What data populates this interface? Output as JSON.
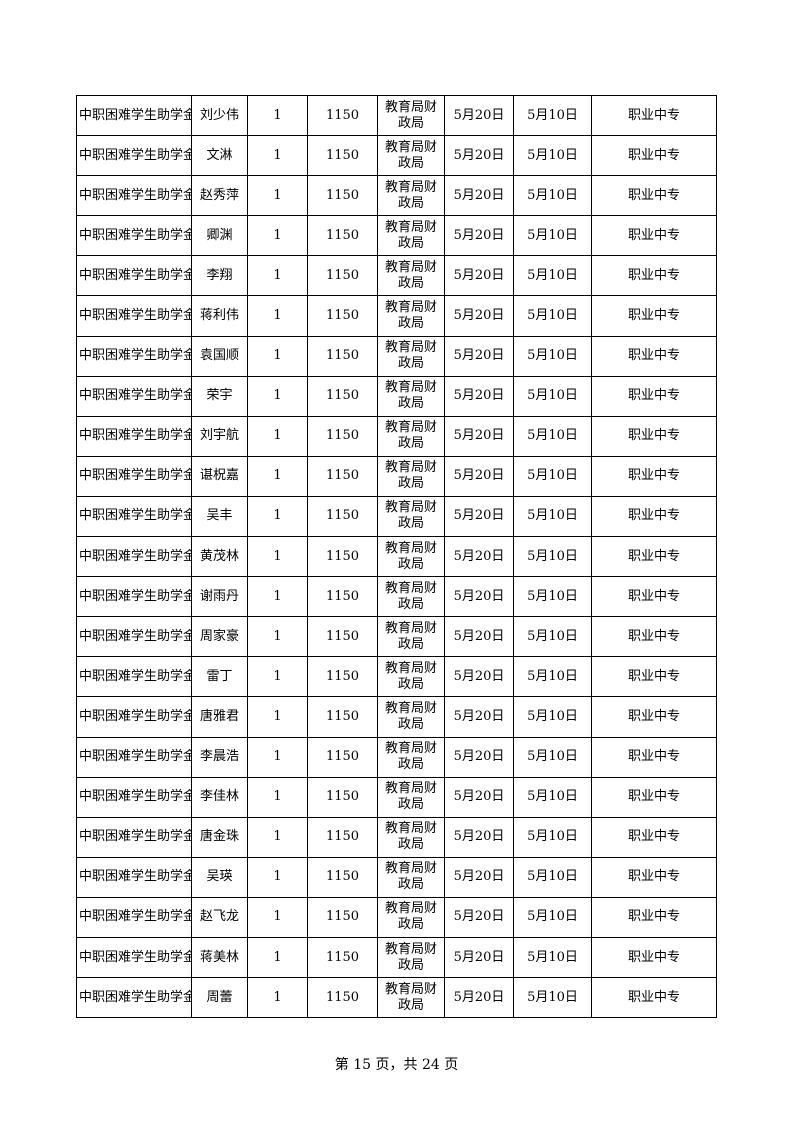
{
  "table": {
    "rows": [
      [
        "中职困难学生助学金",
        "刘少伟",
        "1",
        "1150",
        "教育局财政局",
        "5月20日",
        "5月10日",
        "职业中专"
      ],
      [
        "中职困难学生助学金",
        "文淋",
        "1",
        "1150",
        "教育局财政局",
        "5月20日",
        "5月10日",
        "职业中专"
      ],
      [
        "中职困难学生助学金",
        "赵秀萍",
        "1",
        "1150",
        "教育局财政局",
        "5月20日",
        "5月10日",
        "职业中专"
      ],
      [
        "中职困难学生助学金",
        "卿渊",
        "1",
        "1150",
        "教育局财政局",
        "5月20日",
        "5月10日",
        "职业中专"
      ],
      [
        "中职困难学生助学金",
        "李翔",
        "1",
        "1150",
        "教育局财政局",
        "5月20日",
        "5月10日",
        "职业中专"
      ],
      [
        "中职困难学生助学金",
        "蒋利伟",
        "1",
        "1150",
        "教育局财政局",
        "5月20日",
        "5月10日",
        "职业中专"
      ],
      [
        "中职困难学生助学金",
        "袁国顺",
        "1",
        "1150",
        "教育局财政局",
        "5月20日",
        "5月10日",
        "职业中专"
      ],
      [
        "中职困难学生助学金",
        "荣宇",
        "1",
        "1150",
        "教育局财政局",
        "5月20日",
        "5月10日",
        "职业中专"
      ],
      [
        "中职困难学生助学金",
        "刘宇航",
        "1",
        "1150",
        "教育局财政局",
        "5月20日",
        "5月10日",
        "职业中专"
      ],
      [
        "中职困难学生助学金",
        "谌柷嘉",
        "1",
        "1150",
        "教育局财政局",
        "5月20日",
        "5月10日",
        "职业中专"
      ],
      [
        "中职困难学生助学金",
        "吴丰",
        "1",
        "1150",
        "教育局财政局",
        "5月20日",
        "5月10日",
        "职业中专"
      ],
      [
        "中职困难学生助学金",
        "黄茂林",
        "1",
        "1150",
        "教育局财政局",
        "5月20日",
        "5月10日",
        "职业中专"
      ],
      [
        "中职困难学生助学金",
        "谢雨丹",
        "1",
        "1150",
        "教育局财政局",
        "5月20日",
        "5月10日",
        "职业中专"
      ],
      [
        "中职困难学生助学金",
        "周家豪",
        "1",
        "1150",
        "教育局财政局",
        "5月20日",
        "5月10日",
        "职业中专"
      ],
      [
        "中职困难学生助学金",
        "雷丁",
        "1",
        "1150",
        "教育局财政局",
        "5月20日",
        "5月10日",
        "职业中专"
      ],
      [
        "中职困难学生助学金",
        "唐雅君",
        "1",
        "1150",
        "教育局财政局",
        "5月20日",
        "5月10日",
        "职业中专"
      ],
      [
        "中职困难学生助学金",
        "李晨浩",
        "1",
        "1150",
        "教育局财政局",
        "5月20日",
        "5月10日",
        "职业中专"
      ],
      [
        "中职困难学生助学金",
        "李佳林",
        "1",
        "1150",
        "教育局财政局",
        "5月20日",
        "5月10日",
        "职业中专"
      ],
      [
        "中职困难学生助学金",
        "唐金珠",
        "1",
        "1150",
        "教育局财政局",
        "5月20日",
        "5月10日",
        "职业中专"
      ],
      [
        "中职困难学生助学金",
        "吴瑛",
        "1",
        "1150",
        "教育局财政局",
        "5月20日",
        "5月10日",
        "职业中专"
      ],
      [
        "中职困难学生助学金",
        "赵飞龙",
        "1",
        "1150",
        "教育局财政局",
        "5月20日",
        "5月10日",
        "职业中专"
      ],
      [
        "中职困难学生助学金",
        "蒋美林",
        "1",
        "1150",
        "教育局财政局",
        "5月20日",
        "5月10日",
        "职业中专"
      ],
      [
        "中职困难学生助学金",
        "周蕾",
        "1",
        "1150",
        "教育局财政局",
        "5月20日",
        "5月10日",
        "职业中专"
      ]
    ]
  },
  "footer": "第 15 页，共 24 页"
}
